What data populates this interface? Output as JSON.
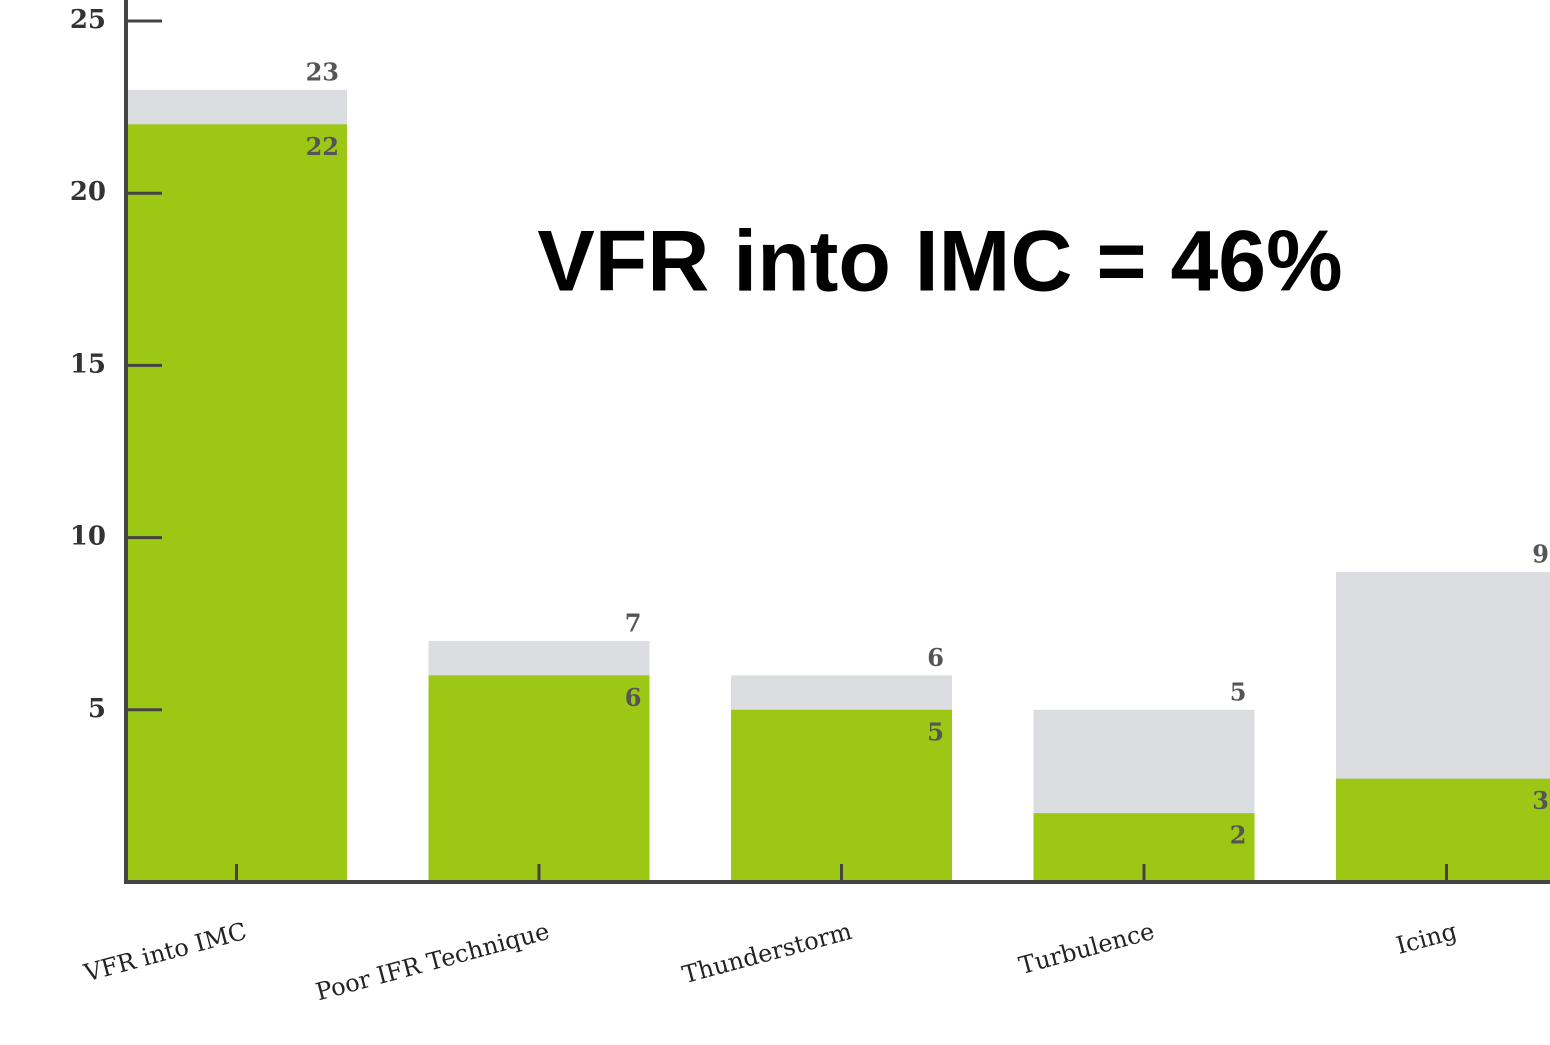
{
  "chart_data": {
    "type": "bar",
    "annotation": "VFR into IMC = 46%",
    "categories": [
      "VFR into IMC",
      "Poor IFR Technique",
      "Thunderstorm",
      "Turbulence",
      "Icing"
    ],
    "series": [
      {
        "color": "#dcdde0",
        "values": [
          23,
          7,
          6,
          5,
          9
        ]
      },
      {
        "color": "#9dc715",
        "values": [
          22,
          6,
          5,
          2,
          3
        ]
      }
    ],
    "ylim": [
      0,
      25
    ],
    "yticks": [
      5,
      10,
      15,
      20,
      25
    ]
  }
}
